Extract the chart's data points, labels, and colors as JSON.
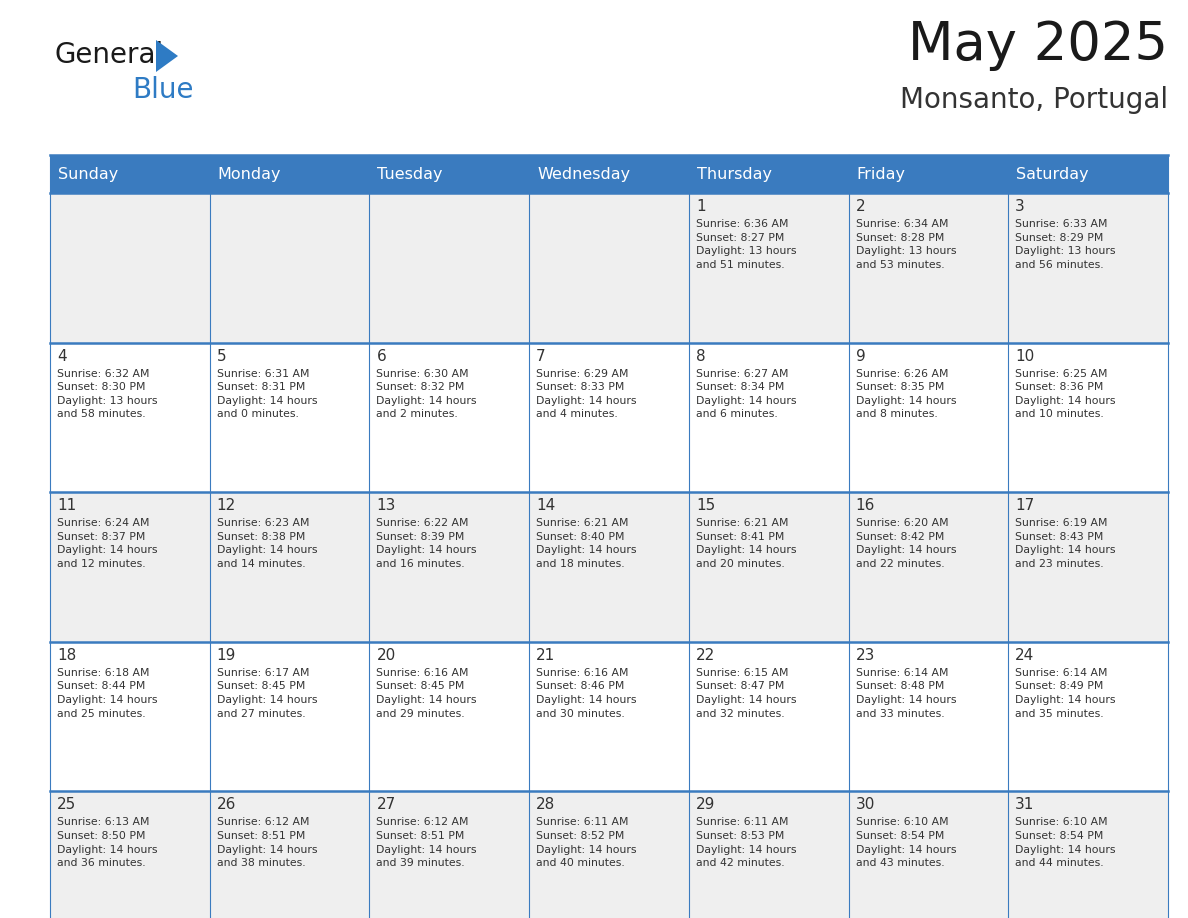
{
  "title": "May 2025",
  "subtitle": "Monsanto, Portugal",
  "days_of_week": [
    "Sunday",
    "Monday",
    "Tuesday",
    "Wednesday",
    "Thursday",
    "Friday",
    "Saturday"
  ],
  "header_bg": "#3A7BBF",
  "header_text_color": "#FFFFFF",
  "row_bg_odd": "#EFEFEF",
  "row_bg_even": "#FFFFFF",
  "border_color": "#3A7BBF",
  "day_number_color": "#333333",
  "cell_text_color": "#333333",
  "title_color": "#1a1a1a",
  "subtitle_color": "#333333",
  "logo_general_color": "#1a1a1a",
  "logo_blue_color": "#2E7BC4",
  "weeks": [
    [
      {
        "day": null,
        "text": ""
      },
      {
        "day": null,
        "text": ""
      },
      {
        "day": null,
        "text": ""
      },
      {
        "day": null,
        "text": ""
      },
      {
        "day": 1,
        "text": "Sunrise: 6:36 AM\nSunset: 8:27 PM\nDaylight: 13 hours\nand 51 minutes."
      },
      {
        "day": 2,
        "text": "Sunrise: 6:34 AM\nSunset: 8:28 PM\nDaylight: 13 hours\nand 53 minutes."
      },
      {
        "day": 3,
        "text": "Sunrise: 6:33 AM\nSunset: 8:29 PM\nDaylight: 13 hours\nand 56 minutes."
      }
    ],
    [
      {
        "day": 4,
        "text": "Sunrise: 6:32 AM\nSunset: 8:30 PM\nDaylight: 13 hours\nand 58 minutes."
      },
      {
        "day": 5,
        "text": "Sunrise: 6:31 AM\nSunset: 8:31 PM\nDaylight: 14 hours\nand 0 minutes."
      },
      {
        "day": 6,
        "text": "Sunrise: 6:30 AM\nSunset: 8:32 PM\nDaylight: 14 hours\nand 2 minutes."
      },
      {
        "day": 7,
        "text": "Sunrise: 6:29 AM\nSunset: 8:33 PM\nDaylight: 14 hours\nand 4 minutes."
      },
      {
        "day": 8,
        "text": "Sunrise: 6:27 AM\nSunset: 8:34 PM\nDaylight: 14 hours\nand 6 minutes."
      },
      {
        "day": 9,
        "text": "Sunrise: 6:26 AM\nSunset: 8:35 PM\nDaylight: 14 hours\nand 8 minutes."
      },
      {
        "day": 10,
        "text": "Sunrise: 6:25 AM\nSunset: 8:36 PM\nDaylight: 14 hours\nand 10 minutes."
      }
    ],
    [
      {
        "day": 11,
        "text": "Sunrise: 6:24 AM\nSunset: 8:37 PM\nDaylight: 14 hours\nand 12 minutes."
      },
      {
        "day": 12,
        "text": "Sunrise: 6:23 AM\nSunset: 8:38 PM\nDaylight: 14 hours\nand 14 minutes."
      },
      {
        "day": 13,
        "text": "Sunrise: 6:22 AM\nSunset: 8:39 PM\nDaylight: 14 hours\nand 16 minutes."
      },
      {
        "day": 14,
        "text": "Sunrise: 6:21 AM\nSunset: 8:40 PM\nDaylight: 14 hours\nand 18 minutes."
      },
      {
        "day": 15,
        "text": "Sunrise: 6:21 AM\nSunset: 8:41 PM\nDaylight: 14 hours\nand 20 minutes."
      },
      {
        "day": 16,
        "text": "Sunrise: 6:20 AM\nSunset: 8:42 PM\nDaylight: 14 hours\nand 22 minutes."
      },
      {
        "day": 17,
        "text": "Sunrise: 6:19 AM\nSunset: 8:43 PM\nDaylight: 14 hours\nand 23 minutes."
      }
    ],
    [
      {
        "day": 18,
        "text": "Sunrise: 6:18 AM\nSunset: 8:44 PM\nDaylight: 14 hours\nand 25 minutes."
      },
      {
        "day": 19,
        "text": "Sunrise: 6:17 AM\nSunset: 8:45 PM\nDaylight: 14 hours\nand 27 minutes."
      },
      {
        "day": 20,
        "text": "Sunrise: 6:16 AM\nSunset: 8:45 PM\nDaylight: 14 hours\nand 29 minutes."
      },
      {
        "day": 21,
        "text": "Sunrise: 6:16 AM\nSunset: 8:46 PM\nDaylight: 14 hours\nand 30 minutes."
      },
      {
        "day": 22,
        "text": "Sunrise: 6:15 AM\nSunset: 8:47 PM\nDaylight: 14 hours\nand 32 minutes."
      },
      {
        "day": 23,
        "text": "Sunrise: 6:14 AM\nSunset: 8:48 PM\nDaylight: 14 hours\nand 33 minutes."
      },
      {
        "day": 24,
        "text": "Sunrise: 6:14 AM\nSunset: 8:49 PM\nDaylight: 14 hours\nand 35 minutes."
      }
    ],
    [
      {
        "day": 25,
        "text": "Sunrise: 6:13 AM\nSunset: 8:50 PM\nDaylight: 14 hours\nand 36 minutes."
      },
      {
        "day": 26,
        "text": "Sunrise: 6:12 AM\nSunset: 8:51 PM\nDaylight: 14 hours\nand 38 minutes."
      },
      {
        "day": 27,
        "text": "Sunrise: 6:12 AM\nSunset: 8:51 PM\nDaylight: 14 hours\nand 39 minutes."
      },
      {
        "day": 28,
        "text": "Sunrise: 6:11 AM\nSunset: 8:52 PM\nDaylight: 14 hours\nand 40 minutes."
      },
      {
        "day": 29,
        "text": "Sunrise: 6:11 AM\nSunset: 8:53 PM\nDaylight: 14 hours\nand 42 minutes."
      },
      {
        "day": 30,
        "text": "Sunrise: 6:10 AM\nSunset: 8:54 PM\nDaylight: 14 hours\nand 43 minutes."
      },
      {
        "day": 31,
        "text": "Sunrise: 6:10 AM\nSunset: 8:54 PM\nDaylight: 14 hours\nand 44 minutes."
      }
    ]
  ]
}
